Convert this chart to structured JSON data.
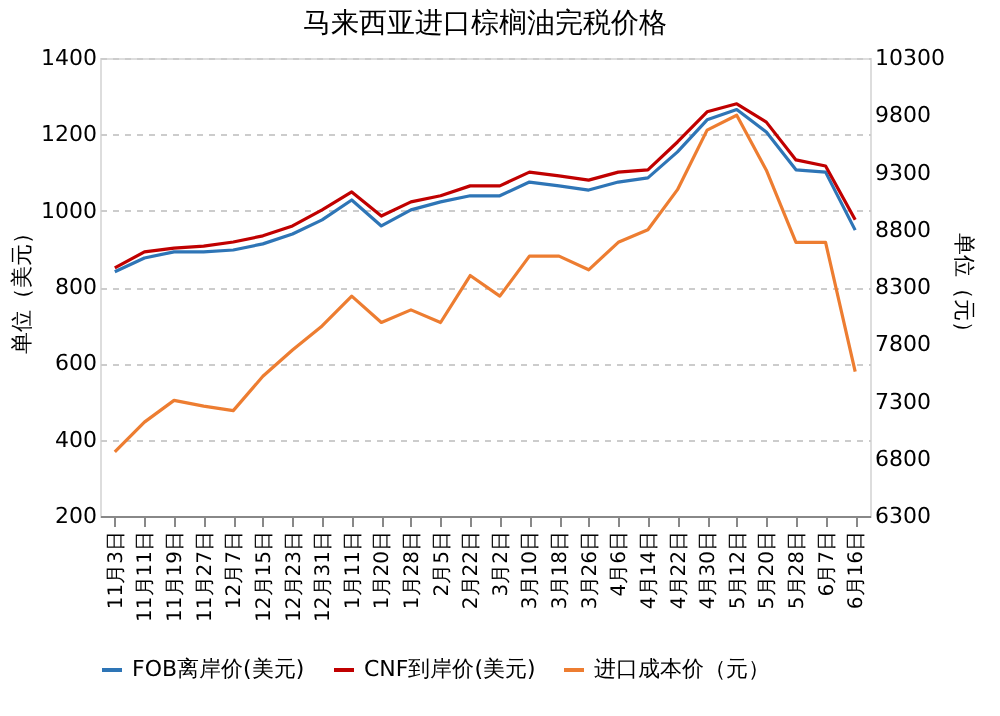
{
  "chart_data": {
    "type": "line",
    "title": "马来西亚进口棕榈油完税价格",
    "categories": [
      "11月3日",
      "11月11日",
      "11月19日",
      "11月27日",
      "12月7日",
      "12月15日",
      "12月23日",
      "12月31日",
      "1月11日",
      "1月20日",
      "1月28日",
      "2月5日",
      "2月22日",
      "3月2日",
      "3月10日",
      "3月18日",
      "3月26日",
      "4月6日",
      "4月14日",
      "4月22日",
      "4月30日",
      "5月12日",
      "5月20日",
      "5月28日",
      "6月7日",
      "6月16日"
    ],
    "series": [
      {
        "name": "FOB离岸价(美元)",
        "color": "#2e75b6",
        "values": [
          840,
          876,
          892,
          892,
          897,
          913,
          939,
          976,
          1028,
          960,
          1002,
          1023,
          1039,
          1039,
          1075,
          1065,
          1054,
          1075,
          1086,
          1154,
          1238,
          1265,
          1206,
          1107,
          1101,
          949
        ]
      },
      {
        "name": "CNF到岸价(美元)",
        "color": "#c00000",
        "values": [
          850,
          892,
          902,
          907,
          918,
          934,
          960,
          1002,
          1049,
          986,
          1023,
          1039,
          1065,
          1065,
          1101,
          1091,
          1080,
          1101,
          1107,
          1180,
          1259,
          1280,
          1232,
          1133,
          1117,
          976
        ]
      },
      {
        "name": "进口成本价（元）",
        "color": "#ed7d31",
        "axis": "y2",
        "values": [
          6860,
          7120,
          7310,
          7260,
          7220,
          7520,
          7750,
          7960,
          8220,
          7990,
          8100,
          7990,
          8400,
          8220,
          8570,
          8570,
          8450,
          8690,
          8800,
          9150,
          9670,
          9800,
          9320,
          8690,
          8690,
          7560
        ]
      }
    ],
    "ylabel": "单位（美元）",
    "y2label": "单位（元）",
    "ylim": [
      200,
      1400
    ],
    "yticks": [
      200,
      400,
      600,
      800,
      1000,
      1200,
      1400
    ],
    "y2lim": [
      6300,
      10300
    ],
    "y2ticks": [
      6300,
      6800,
      7300,
      7800,
      8300,
      8800,
      9300,
      9800,
      10300
    ],
    "grid": "y",
    "legend": "bottom",
    "marker": "none",
    "line_style": "solid"
  }
}
